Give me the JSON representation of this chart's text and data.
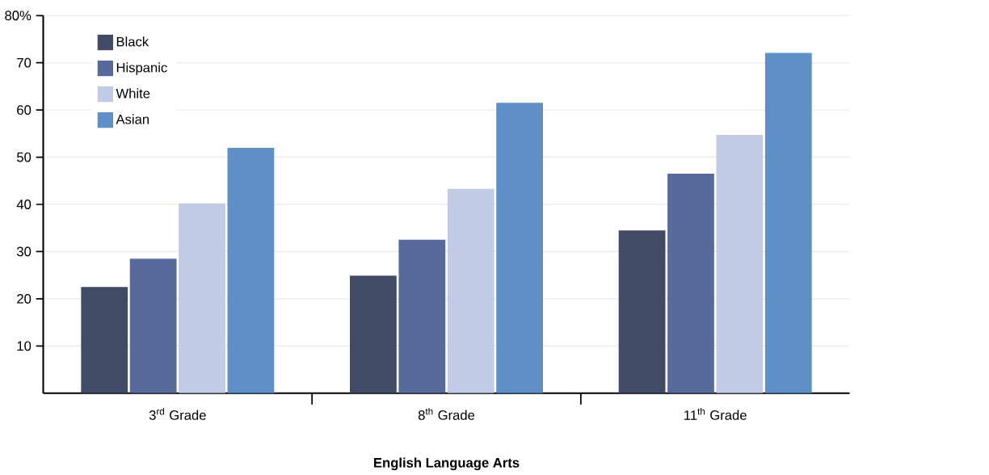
{
  "chart_data": {
    "type": "bar",
    "xlabel": "English Language Arts",
    "categories": [
      "3$^{rd}$ Grade",
      "8$^{th}$ Grade",
      "11$^{th}$ Grade"
    ],
    "series": [
      {
        "name": "Black",
        "color": "#414b66",
        "values": [
          22.5,
          24.9,
          34.5
        ]
      },
      {
        "name": "Hispanic",
        "color": "#586a9b",
        "values": [
          28.5,
          32.5,
          46.5
        ]
      },
      {
        "name": "White",
        "color": "#c2cbe6",
        "values": [
          40.2,
          43.3,
          54.7
        ]
      },
      {
        "name": "Asian",
        "color": "#5e8fc6",
        "values": [
          52.0,
          61.5,
          72.1
        ]
      }
    ],
    "ylim": [
      0,
      80
    ],
    "yticks": [
      10,
      20,
      30,
      40,
      50,
      60,
      70,
      {
        "value": 80,
        "label": "80%"
      }
    ],
    "grid": "y",
    "legend": "top left"
  }
}
